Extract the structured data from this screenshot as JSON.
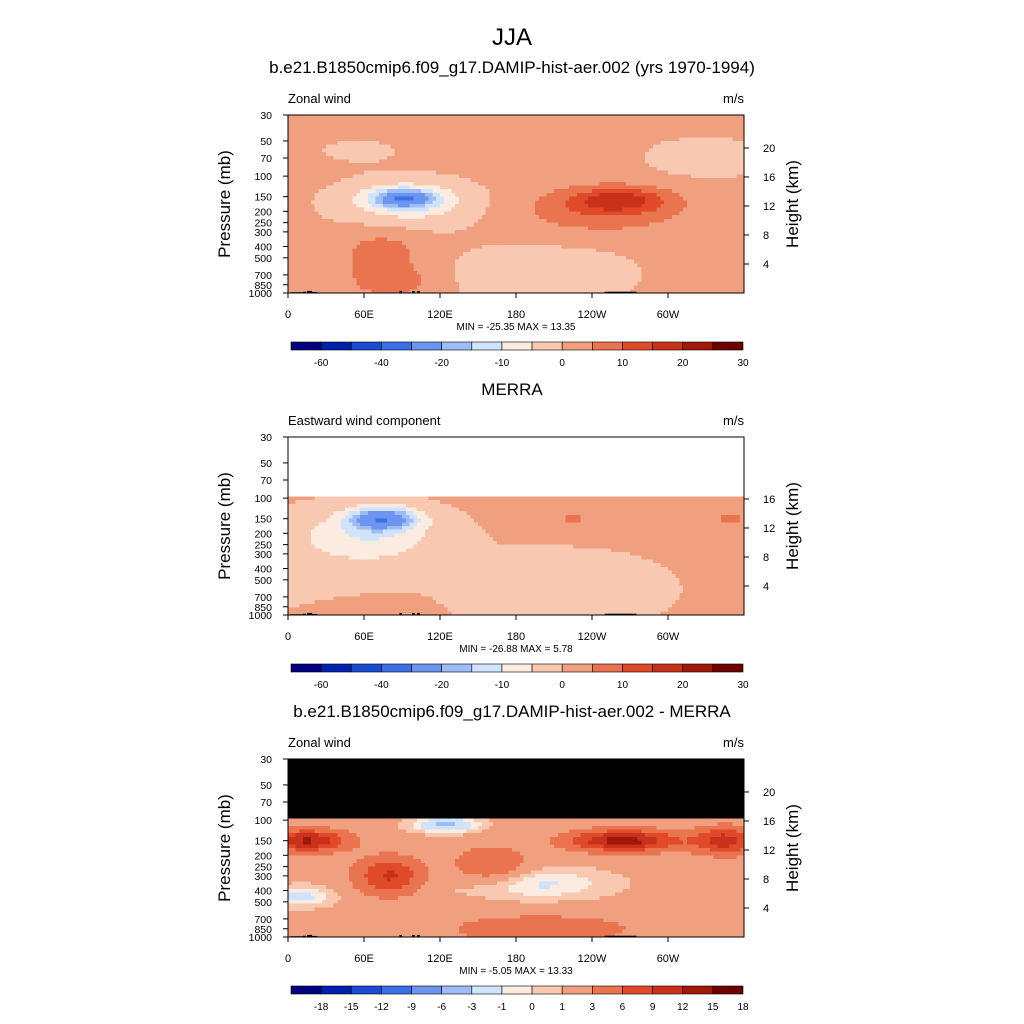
{
  "page_title": "JJA",
  "colors": {
    "div_12": [
      "#00007f",
      "#0020b0",
      "#1c4cd4",
      "#3d6fe6",
      "#6c95f0",
      "#9ebdf6",
      "#cfe3fb",
      "#fcebe0",
      "#f8c8b0",
      "#f1a07f",
      "#ea7350",
      "#e04a28",
      "#b8240f",
      "#7a0000"
    ],
    "div_14": [
      "#00007f",
      "#0020b0",
      "#1c4cd4",
      "#3d6fe6",
      "#6c95f0",
      "#9ebdf6",
      "#cfe3fb",
      "#fcebe0",
      "#f8c8b0",
      "#f1a07f",
      "#ea7350",
      "#e04a28",
      "#c8321a",
      "#a01808",
      "#6e0000"
    ],
    "masked": "#000000",
    "topography": "#000000"
  },
  "chart_data": [
    {
      "type": "heatmap",
      "panel_title": "b.e21.B1850cmip6.f09_g17.DAMIP-hist-aer.002 (yrs 1970-1994)",
      "left_label": "Zonal wind",
      "right_label": "m/s",
      "ylabel": "Pressure (mb)",
      "y2label": "Height (km)",
      "x_ticks": [
        "0",
        "60E",
        "120E",
        "180",
        "120W",
        "60W"
      ],
      "x_tick_values": [
        0,
        60,
        120,
        180,
        240,
        300
      ],
      "xlim": [
        0,
        360
      ],
      "y_ticks": [
        30,
        50,
        70,
        100,
        150,
        200,
        250,
        300,
        400,
        500,
        700,
        850,
        1000
      ],
      "ylim": [
        30,
        1000
      ],
      "y2_ticks": [
        4,
        8,
        12,
        16,
        20
      ],
      "stats": "MIN = -25.35  MAX =  13.35",
      "min": -25.35,
      "max": 13.35,
      "levels": [
        -60,
        -50,
        -40,
        -30,
        -20,
        -15,
        -10,
        -5,
        0,
        5,
        10,
        15,
        20,
        25,
        30
      ],
      "colorbar_labels": [
        "-60",
        "-40",
        "-20",
        "-10",
        "0",
        "10",
        "20",
        "30"
      ],
      "colorbar_label_levels": [
        -60,
        -40,
        -20,
        -10,
        0,
        10,
        20,
        30
      ],
      "palette": "div_14",
      "field": "model",
      "mask_above_hpa": null
    },
    {
      "type": "heatmap",
      "panel_title": "MERRA",
      "left_label": "Eastward wind component",
      "right_label": "m/s",
      "ylabel": "Pressure (mb)",
      "y2label": "Height (km)",
      "x_ticks": [
        "0",
        "60E",
        "120E",
        "180",
        "120W",
        "60W"
      ],
      "x_tick_values": [
        0,
        60,
        120,
        180,
        240,
        300
      ],
      "xlim": [
        0,
        360
      ],
      "y_ticks": [
        30,
        50,
        70,
        100,
        150,
        200,
        250,
        300,
        400,
        500,
        700,
        850,
        1000
      ],
      "ylim": [
        30,
        1000
      ],
      "y2_ticks": [
        4,
        8,
        12,
        16
      ],
      "stats": "MIN = -26.88  MAX =   5.78",
      "min": -26.88,
      "max": 5.78,
      "levels": [
        -60,
        -50,
        -40,
        -30,
        -20,
        -15,
        -10,
        -5,
        0,
        5,
        10,
        15,
        20,
        25,
        30
      ],
      "colorbar_labels": [
        "-60",
        "-40",
        "-20",
        "-10",
        "0",
        "10",
        "20",
        "30"
      ],
      "colorbar_label_levels": [
        -60,
        -40,
        -20,
        -10,
        0,
        10,
        20,
        30
      ],
      "palette": "div_14",
      "field": "obs",
      "mask_above_hpa": 100,
      "mask_style": "blank"
    },
    {
      "type": "heatmap",
      "panel_title": "b.e21.B1850cmip6.f09_g17.DAMIP-hist-aer.002 - MERRA",
      "left_label": "Zonal wind",
      "right_label": "m/s",
      "ylabel": "Pressure (mb)",
      "y2label": "Height (km)",
      "x_ticks": [
        "0",
        "60E",
        "120E",
        "180",
        "120W",
        "60W"
      ],
      "x_tick_values": [
        0,
        60,
        120,
        180,
        240,
        300
      ],
      "xlim": [
        0,
        360
      ],
      "y_ticks": [
        30,
        50,
        70,
        100,
        150,
        200,
        250,
        300,
        400,
        500,
        700,
        850,
        1000
      ],
      "ylim": [
        30,
        1000
      ],
      "y2_ticks": [
        4,
        8,
        12,
        16,
        20
      ],
      "stats": "MIN =  -5.05  MAX =  13.33",
      "min": -5.05,
      "max": 13.33,
      "levels": [
        -18,
        -15,
        -12,
        -9,
        -6,
        -3,
        -1,
        0,
        1,
        3,
        6,
        9,
        12,
        15,
        18
      ],
      "colorbar_labels": [
        "-18",
        "-15",
        "-12",
        "-9",
        "-6",
        "-3",
        "-1",
        "0",
        "1",
        "3",
        "6",
        "9",
        "12",
        "15",
        "18"
      ],
      "colorbar_label_levels": [
        -18,
        -15,
        -12,
        -9,
        -6,
        -3,
        -1,
        0,
        1,
        3,
        6,
        9,
        12,
        15,
        18
      ],
      "palette": "div_14",
      "field": "diff",
      "mask_above_hpa": 100,
      "mask_style": "black"
    }
  ]
}
